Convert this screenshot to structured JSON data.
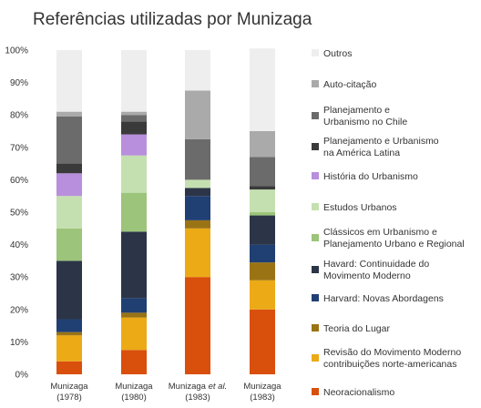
{
  "chart_data": {
    "type": "bar",
    "stacked": true,
    "percent": true,
    "title": "Referências utilizadas por Munizaga",
    "ylim": [
      0,
      100
    ],
    "y_ticks": [
      "0%",
      "10%",
      "20%",
      "30%",
      "40%",
      "50%",
      "60%",
      "70%",
      "80%",
      "90%",
      "100%"
    ],
    "grid": false,
    "legend_position": "right",
    "categories": [
      {
        "line1": "Munizaga",
        "line1_extra": "",
        "line2": "(1978)"
      },
      {
        "line1": "Munizaga",
        "line1_extra": "",
        "line2": "(1980)"
      },
      {
        "line1": "Munizaga",
        "line1_extra": "et al.",
        "line2": "(1983)"
      },
      {
        "line1": "Munizaga",
        "line1_extra": "",
        "line2": "(1983)"
      }
    ],
    "series": [
      {
        "name": [
          "Neoracionalismo"
        ],
        "color": "#d94f0c",
        "values": [
          4,
          7.5,
          30,
          20
        ]
      },
      {
        "name": [
          "Revisão do Movimento Moderno",
          "contribuições norte-americanas"
        ],
        "color": "#ecaa17",
        "values": [
          8,
          10,
          15,
          9
        ]
      },
      {
        "name": [
          "Teoria do Lugar"
        ],
        "color": "#9a7314",
        "values": [
          1,
          1.5,
          2.5,
          5.5
        ]
      },
      {
        "name": [
          "Harvard: Novas Abordagens"
        ],
        "color": "#203f73",
        "values": [
          4,
          4.5,
          7.5,
          5.5
        ]
      },
      {
        "name": [
          "Havard: Continuidade do",
          "Movimento Moderno"
        ],
        "color": "#2c3547",
        "values": [
          18,
          20.5,
          2.5,
          9
        ]
      },
      {
        "name": [
          "Clássicos em Urbanismo e",
          "Planejamento Urbano e Regional"
        ],
        "color": "#9cc47a",
        "values": [
          10,
          12,
          0,
          1
        ]
      },
      {
        "name": [
          "Estudos Urbanos"
        ],
        "color": "#c5e0b0",
        "values": [
          10,
          11.5,
          2.5,
          7
        ]
      },
      {
        "name": [
          "História do Urbanismo"
        ],
        "color": "#b88fdc",
        "values": [
          7,
          6.5,
          0,
          0
        ]
      },
      {
        "name": [
          "Planejamento e Urbanismo",
          "na América Latina"
        ],
        "color": "#3a3a3a",
        "values": [
          3,
          4,
          0,
          1
        ]
      },
      {
        "name": [
          "Planejamento e",
          "Urbanismo no Chile"
        ],
        "color": "#6b6b6b",
        "values": [
          14.5,
          2,
          12.5,
          9
        ]
      },
      {
        "name": [
          "Auto-citação"
        ],
        "color": "#aaaaaa",
        "values": [
          1.5,
          1,
          15,
          8
        ]
      },
      {
        "name": [
          "Outros"
        ],
        "color": "#eeeeee",
        "values": [
          19,
          19,
          12.5,
          25.5
        ]
      }
    ]
  }
}
